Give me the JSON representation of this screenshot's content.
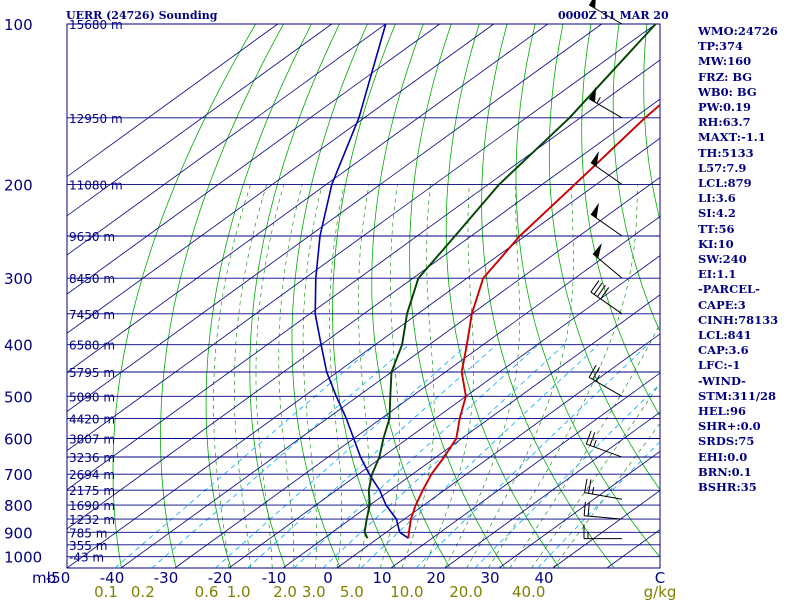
{
  "header": {
    "title": "UERR (24726) Sounding",
    "time": "0000Z 31 MAR 20"
  },
  "colors": {
    "isobar": "#000080",
    "skewed_isotherm": "#000080",
    "dry_adiabat": "#00aa00",
    "moist_adiabat": "#008000",
    "mixing_ratio": "#00aaff",
    "temperature": "#cc0000",
    "dewpoint": "#004400",
    "parcel": "#0000aa",
    "wind": "#000000",
    "text": "#000080",
    "mixing_ratio_labels": "#808000"
  },
  "chart_data": {
    "type": "skew-t",
    "title": "UERR (24726) Sounding",
    "xlabel": "C",
    "x_units": "C",
    "y_units": "mb",
    "y_log": true,
    "xlim": [
      -50,
      50
    ],
    "ylim": [
      1050,
      100
    ],
    "skew_label_rows": [
      1050,
      1080
    ],
    "pressure_ticks": [
      100,
      200,
      300,
      400,
      500,
      600,
      700,
      800,
      900,
      1000
    ],
    "temperature_ticks": [
      -50,
      -40,
      -30,
      -20,
      -10,
      0,
      10,
      20,
      30,
      40
    ],
    "temperature_tick_labels": [
      "-50",
      "-40",
      "-30",
      "-20",
      "-10",
      "0",
      "10",
      "20",
      "30",
      "40"
    ],
    "mb_label": "mb",
    "mixing_ratio_lines": [
      0.1,
      0.2,
      0.6,
      1.0,
      2.0,
      3.0,
      5.0,
      10.0,
      20.0,
      40.0
    ],
    "mixing_ratio_labels": [
      "0.1",
      "0.2",
      "0.6",
      "1.0",
      "2.0",
      "3.0",
      "5.0",
      "10.0",
      "20.0",
      "40.0"
    ],
    "mixing_ratio_unit": "g/kg",
    "height_labels": [
      {
        "p": 100,
        "label": "15680 m"
      },
      {
        "p": 150,
        "label": "12950 m"
      },
      {
        "p": 200,
        "label": "11080 m"
      },
      {
        "p": 250,
        "label": "9630 m"
      },
      {
        "p": 300,
        "label": "8450 m"
      },
      {
        "p": 350,
        "label": "7450 m"
      },
      {
        "p": 400,
        "label": "6580 m"
      },
      {
        "p": 450,
        "label": "5795 m"
      },
      {
        "p": 500,
        "label": "5090 m"
      },
      {
        "p": 550,
        "label": "4420 m"
      },
      {
        "p": 600,
        "label": "3807 m"
      },
      {
        "p": 650,
        "label": "3236 m"
      },
      {
        "p": 700,
        "label": "2694 m"
      },
      {
        "p": 750,
        "label": "2175 m"
      },
      {
        "p": 800,
        "label": "1690 m"
      },
      {
        "p": 850,
        "label": "1232 m"
      },
      {
        "p": 900,
        "label": "785 m"
      },
      {
        "p": 950,
        "label": "355 m"
      },
      {
        "p": 1000,
        "label": "-43 m"
      }
    ],
    "series": [
      {
        "key": "temperature",
        "points": [
          [
            923,
            5.6
          ],
          [
            900,
            4.2
          ],
          [
            850,
            1.2
          ],
          [
            800,
            -1.5
          ],
          [
            750,
            -4
          ],
          [
            700,
            -6.5
          ],
          [
            650,
            -8.5
          ],
          [
            600,
            -11
          ],
          [
            550,
            -15.5
          ],
          [
            500,
            -20
          ],
          [
            450,
            -27
          ],
          [
            400,
            -33
          ],
          [
            350,
            -40
          ],
          [
            300,
            -47
          ],
          [
            250,
            -51
          ],
          [
            200,
            -54
          ],
          [
            150,
            -58
          ],
          [
            100,
            -62
          ]
        ]
      },
      {
        "key": "dewpoint",
        "points": [
          [
            923,
            -2
          ],
          [
            900,
            -4
          ],
          [
            850,
            -7
          ],
          [
            800,
            -10
          ],
          [
            750,
            -14
          ],
          [
            700,
            -17.5
          ],
          [
            650,
            -20.5
          ],
          [
            600,
            -24.5
          ],
          [
            550,
            -28.5
          ],
          [
            500,
            -34
          ],
          [
            450,
            -40
          ],
          [
            400,
            -45
          ],
          [
            350,
            -52
          ],
          [
            300,
            -59
          ],
          [
            250,
            -63
          ],
          [
            200,
            -68
          ],
          [
            150,
            -72
          ],
          [
            100,
            -80
          ]
        ]
      },
      {
        "key": "parcel",
        "points": [
          [
            923,
            5.6
          ],
          [
            900,
            2.5
          ],
          [
            850,
            -1.5
          ],
          [
            800,
            -7
          ],
          [
            750,
            -12
          ],
          [
            700,
            -18
          ],
          [
            650,
            -24
          ],
          [
            600,
            -30
          ],
          [
            550,
            -36.5
          ],
          [
            500,
            -44
          ],
          [
            450,
            -52
          ],
          [
            400,
            -60
          ],
          [
            350,
            -69
          ],
          [
            300,
            -78
          ],
          [
            250,
            -88
          ],
          [
            200,
            -99
          ],
          [
            150,
            -111
          ],
          [
            100,
            -130
          ]
        ]
      }
    ],
    "wind_barbs": [
      {
        "p": 100,
        "dir": 300,
        "speed": 50
      },
      {
        "p": 150,
        "dir": 300,
        "speed": 55
      },
      {
        "p": 200,
        "dir": 305,
        "speed": 50
      },
      {
        "p": 250,
        "dir": 305,
        "speed": 50
      },
      {
        "p": 300,
        "dir": 310,
        "speed": 50
      },
      {
        "p": 350,
        "dir": 305,
        "speed": 40
      },
      {
        "p": 500,
        "dir": 300,
        "speed": 25
      },
      {
        "p": 650,
        "dir": 290,
        "speed": 25
      },
      {
        "p": 780,
        "dir": 280,
        "speed": 25
      },
      {
        "p": 850,
        "dir": 275,
        "speed": 20
      },
      {
        "p": 925,
        "dir": 270,
        "speed": 15
      }
    ]
  },
  "indices": [
    "WMO:24726",
    "TP:374",
    "MW:160",
    "FRZ: BG",
    "WB0: BG",
    "PW:0.19",
    "RH:63.7",
    "MAXT:-1.1",
    "TH:5133",
    "L57:7.9",
    "LCL:879",
    "LI:3.6",
    "SI:4.2",
    "TT:56",
    "KI:10",
    "SW:240",
    "EI:1.1",
    "-PARCEL-",
    "CAPE:3",
    "CINH:78133",
    "LCL:841",
    "CAP:3.6",
    "LFC:-1",
    "-WIND-",
    "STM:311/28",
    "HEL:96",
    "SHR+:0.0",
    "SRDS:75",
    "EHI:0.0",
    "BRN:0.1",
    "BSHR:35"
  ]
}
